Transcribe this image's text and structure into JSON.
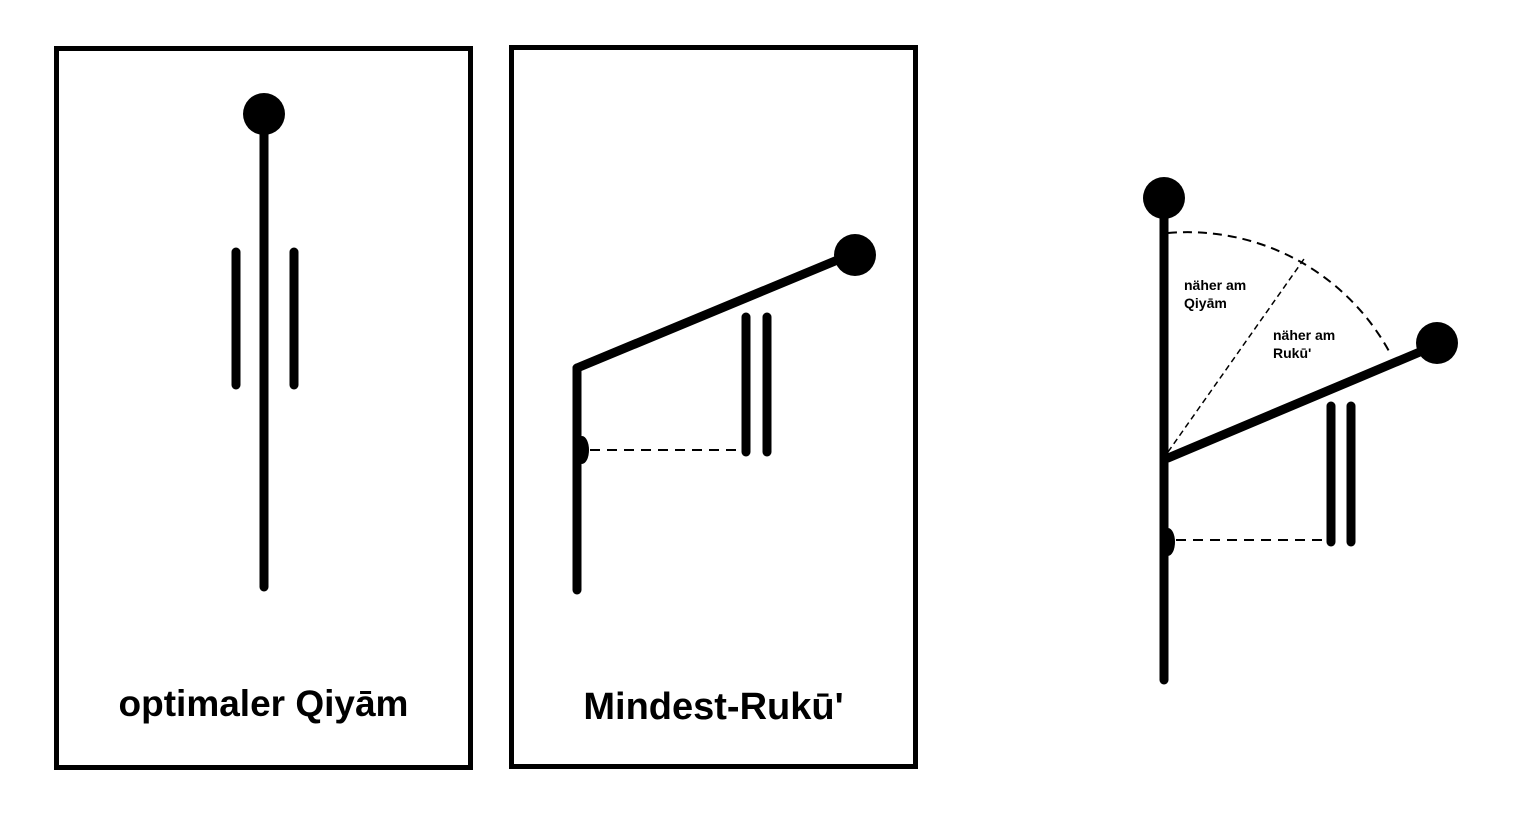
{
  "panels": {
    "qiyam": {
      "caption": "optimaler Qiyām"
    },
    "ruku": {
      "caption": "Mindest-Rukū'"
    }
  },
  "comparison": {
    "label_qiyam_line1": "näher am",
    "label_qiyam_line2": "Qiyām",
    "label_ruku_line1": "näher am",
    "label_ruku_line2": "Rukū'"
  },
  "colors": {
    "stroke": "#000000",
    "background": "#ffffff"
  }
}
